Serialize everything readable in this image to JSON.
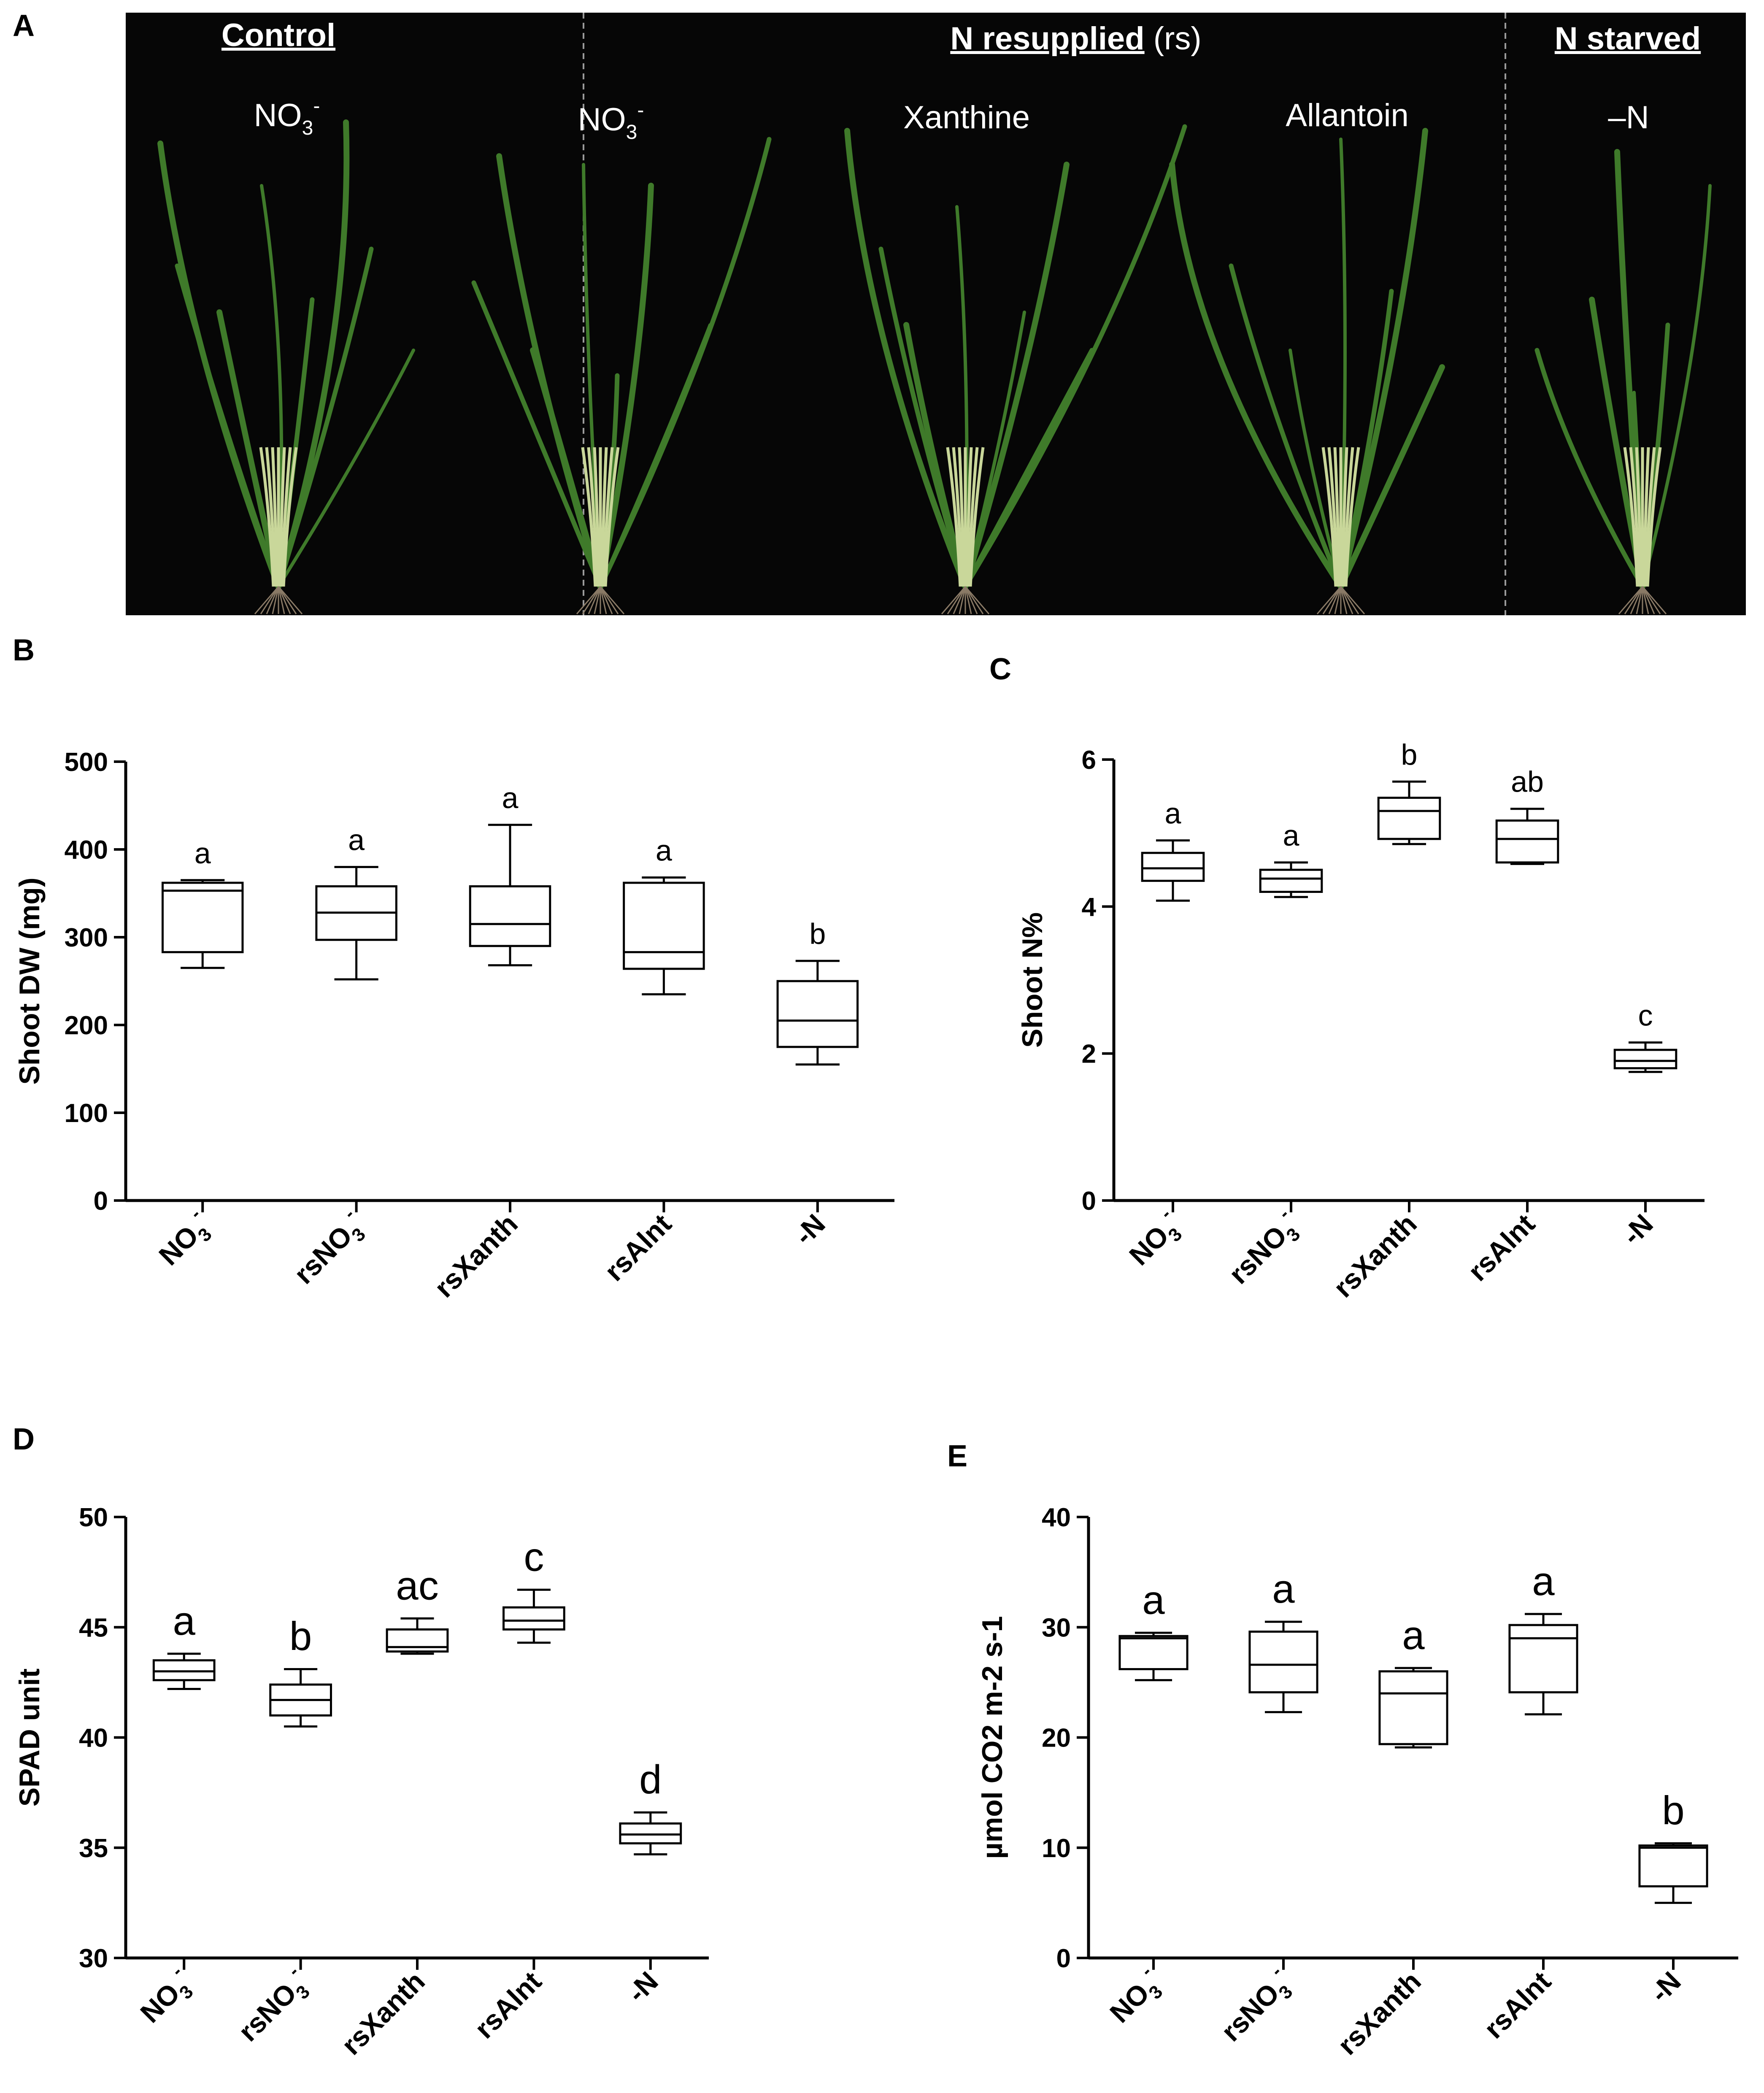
{
  "panel_letters": {
    "a": "A",
    "b": "B",
    "c": "C",
    "d": "D",
    "e": "E"
  },
  "photo": {
    "headers": {
      "control": "Control",
      "resupplied": "N resupplied",
      "resupplied_suffix": " (rs)",
      "starved": "N starved"
    },
    "labels": {
      "control_no3": "NO",
      "rs_no3": "NO",
      "xanthine": "Xanthine",
      "allantoin": "Allantoin",
      "minus_n": "–N"
    },
    "colors": {
      "background": "#060606",
      "leaf": "#3f7a2a",
      "stem": "#c9d79a",
      "divider": "#9a9a9a"
    }
  },
  "chart_data": [
    {
      "id": "B",
      "type": "box",
      "ylabel": "Shoot DW (mg)",
      "ylim": [
        0,
        500
      ],
      "yticks": [
        0,
        100,
        200,
        300,
        400,
        500
      ],
      "categories": [
        "NO3-",
        "rsNO3-",
        "rsXanth",
        "rsAlnt",
        "-N"
      ],
      "category_labels": [
        {
          "main": "NO",
          "sub": "3",
          "sup": "-"
        },
        {
          "main": "rsNO",
          "sub": "3",
          "sup": "-"
        },
        {
          "main": "rsXanth"
        },
        {
          "main": "rsAlnt"
        },
        {
          "main": "-N"
        }
      ],
      "boxes": [
        {
          "min": 265,
          "q1": 283,
          "median": 353,
          "q3": 362,
          "max": 365
        },
        {
          "min": 252,
          "q1": 297,
          "median": 328,
          "q3": 358,
          "max": 380
        },
        {
          "min": 268,
          "q1": 290,
          "median": 315,
          "q3": 358,
          "max": 428
        },
        {
          "min": 235,
          "q1": 264,
          "median": 283,
          "q3": 362,
          "max": 368
        },
        {
          "min": 155,
          "q1": 175,
          "median": 205,
          "q3": 250,
          "max": 273
        }
      ],
      "letters": [
        "a",
        "a",
        "a",
        "a",
        "b"
      ]
    },
    {
      "id": "C",
      "type": "box",
      "ylabel": "Shoot N%",
      "ylim": [
        0,
        6
      ],
      "yticks": [
        0,
        2,
        4,
        6
      ],
      "categories": [
        "NO3-",
        "rsNO3-",
        "rsXanth",
        "rsAlnt",
        "-N"
      ],
      "category_labels": [
        {
          "main": "NO",
          "sub": "3",
          "sup": "-"
        },
        {
          "main": "rsNO",
          "sub": "3",
          "sup": "-"
        },
        {
          "main": "rsXanth"
        },
        {
          "main": "rsAlnt"
        },
        {
          "main": "-N"
        }
      ],
      "boxes": [
        {
          "min": 4.08,
          "q1": 4.35,
          "median": 4.52,
          "q3": 4.73,
          "max": 4.9
        },
        {
          "min": 4.13,
          "q1": 4.2,
          "median": 4.38,
          "q3": 4.5,
          "max": 4.6
        },
        {
          "min": 4.85,
          "q1": 4.92,
          "median": 5.3,
          "q3": 5.48,
          "max": 5.7
        },
        {
          "min": 4.58,
          "q1": 4.6,
          "median": 4.92,
          "q3": 5.17,
          "max": 5.33
        },
        {
          "min": 1.75,
          "q1": 1.8,
          "median": 1.9,
          "q3": 2.05,
          "max": 2.15
        }
      ],
      "letters": [
        "a",
        "a",
        "b",
        "ab",
        "c"
      ]
    },
    {
      "id": "D",
      "type": "box",
      "ylabel": "SPAD unit",
      "ylim": [
        30,
        50
      ],
      "yticks": [
        30,
        35,
        40,
        45,
        50
      ],
      "categories": [
        "NO3-",
        "rsNO3-",
        "rsXanth",
        "rsAlnt",
        "-N"
      ],
      "category_labels": [
        {
          "main": "NO",
          "sub": "3",
          "sup": "-"
        },
        {
          "main": "rsNO",
          "sub": "3",
          "sup": "-"
        },
        {
          "main": "rsXanth"
        },
        {
          "main": "rsAlnt"
        },
        {
          "main": "-N"
        }
      ],
      "boxes": [
        {
          "min": 42.2,
          "q1": 42.6,
          "median": 43.0,
          "q3": 43.5,
          "max": 43.8
        },
        {
          "min": 40.5,
          "q1": 41.0,
          "median": 41.7,
          "q3": 42.4,
          "max": 43.1
        },
        {
          "min": 43.8,
          "q1": 43.9,
          "median": 44.1,
          "q3": 44.9,
          "max": 45.4
        },
        {
          "min": 44.3,
          "q1": 44.9,
          "median": 45.3,
          "q3": 45.9,
          "max": 46.7
        },
        {
          "min": 34.7,
          "q1": 35.2,
          "median": 35.6,
          "q3": 36.1,
          "max": 36.6
        }
      ],
      "letters": [
        "a",
        "b",
        "ac",
        "c",
        "d"
      ]
    },
    {
      "id": "E",
      "type": "box",
      "ylabel": "µmol CO2 m-2 s-1",
      "ylim": [
        0,
        40
      ],
      "yticks": [
        0,
        10,
        20,
        30,
        40
      ],
      "categories": [
        "NO3-",
        "rsNO3-",
        "rsXanth",
        "rsAlnt",
        "-N"
      ],
      "category_labels": [
        {
          "main": "NO",
          "sub": "3",
          "sup": "-"
        },
        {
          "main": "rsNO",
          "sub": "3",
          "sup": "-"
        },
        {
          "main": "rsXanth"
        },
        {
          "main": "rsAlnt"
        },
        {
          "main": "-N"
        }
      ],
      "boxes": [
        {
          "min": 25.2,
          "q1": 26.2,
          "median": 29.0,
          "q3": 29.2,
          "max": 29.5
        },
        {
          "min": 22.3,
          "q1": 24.1,
          "median": 26.6,
          "q3": 29.6,
          "max": 30.5
        },
        {
          "min": 19.1,
          "q1": 19.4,
          "median": 24.0,
          "q3": 26.0,
          "max": 26.3
        },
        {
          "min": 22.1,
          "q1": 24.1,
          "median": 29.0,
          "q3": 30.2,
          "max": 31.2
        },
        {
          "min": 5.0,
          "q1": 6.5,
          "median": 10.0,
          "q3": 10.2,
          "max": 10.4
        }
      ],
      "letters": [
        "a",
        "a",
        "a",
        "a",
        "b"
      ]
    }
  ]
}
